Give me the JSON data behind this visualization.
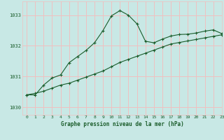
{
  "title": "Graphe pression niveau de la mer (hPa)",
  "background_color": "#c8e8e5",
  "grid_color": "#f0c0c0",
  "line_color": "#1a5c2a",
  "xlim": [
    -0.5,
    23
  ],
  "ylim": [
    1029.75,
    1033.45
  ],
  "yticks": [
    1030,
    1031,
    1032,
    1033
  ],
  "xticks": [
    0,
    1,
    2,
    3,
    4,
    5,
    6,
    7,
    8,
    9,
    10,
    11,
    12,
    13,
    14,
    15,
    16,
    17,
    18,
    19,
    20,
    21,
    22,
    23
  ],
  "series1_x": [
    0,
    1,
    2,
    3,
    4,
    5,
    6,
    7,
    8,
    9,
    10,
    11,
    12,
    13,
    14,
    15,
    16,
    17,
    18,
    19,
    20,
    21,
    22,
    23
  ],
  "series1_y": [
    1030.4,
    1030.4,
    1030.72,
    1030.95,
    1031.05,
    1031.45,
    1031.65,
    1031.85,
    1032.1,
    1032.5,
    1032.98,
    1033.15,
    1033.0,
    1032.72,
    1032.15,
    1032.1,
    1032.22,
    1032.32,
    1032.37,
    1032.38,
    1032.42,
    1032.48,
    1032.52,
    1032.4
  ],
  "series2_x": [
    0,
    1,
    2,
    3,
    4,
    5,
    6,
    7,
    8,
    9,
    10,
    11,
    12,
    13,
    14,
    15,
    16,
    17,
    18,
    19,
    20,
    21,
    22,
    23
  ],
  "series2_y": [
    1030.4,
    1030.45,
    1030.52,
    1030.62,
    1030.72,
    1030.78,
    1030.88,
    1030.98,
    1031.08,
    1031.18,
    1031.32,
    1031.46,
    1031.56,
    1031.66,
    1031.76,
    1031.86,
    1031.96,
    1032.06,
    1032.11,
    1032.16,
    1032.21,
    1032.26,
    1032.31,
    1032.36
  ]
}
